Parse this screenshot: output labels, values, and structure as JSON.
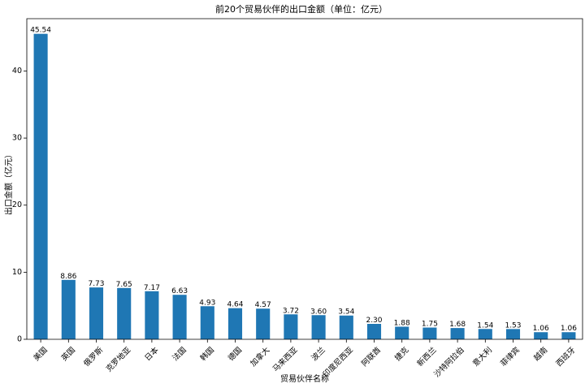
{
  "chart_data": {
    "type": "bar",
    "title": "前20个贸易伙伴的出口金额（单位：亿元）",
    "xlabel": "贸易伙伴名称",
    "ylabel": "出口金额（亿元）",
    "categories": [
      "美国",
      "英国",
      "俄罗斯",
      "克罗地亚",
      "日本",
      "法国",
      "韩国",
      "德国",
      "加拿大",
      "马来西亚",
      "波兰",
      "印度尼西亚",
      "阿联酋",
      "捷克",
      "新西兰",
      "沙特阿拉伯",
      "意大利",
      "菲律宾",
      "越南",
      "西班牙"
    ],
    "values": [
      45.54,
      8.86,
      7.73,
      7.65,
      7.17,
      6.63,
      4.93,
      4.64,
      4.57,
      3.72,
      3.6,
      3.54,
      2.3,
      1.88,
      1.75,
      1.68,
      1.54,
      1.53,
      1.06,
      1.06
    ],
    "value_labels": [
      "45.54",
      "8.86",
      "7.73",
      "7.65",
      "7.17",
      "6.63",
      "4.93",
      "4.64",
      "4.57",
      "3.72",
      "3.60",
      "3.54",
      "2.30",
      "1.88",
      "1.75",
      "1.68",
      "1.54",
      "1.53",
      "1.06",
      "1.06"
    ],
    "yticks": [
      0,
      10,
      20,
      30,
      40
    ],
    "ylim": [
      0,
      47.8
    ],
    "bar_color": "#1f77b4",
    "grid": false,
    "legend": "none"
  }
}
